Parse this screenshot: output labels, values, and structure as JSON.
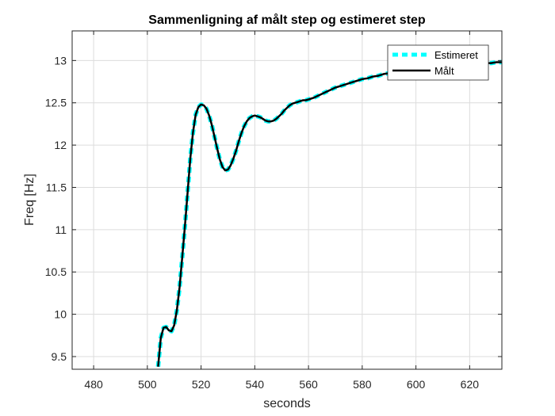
{
  "chart_data": {
    "type": "line",
    "title": "Sammenligning af målt step og estimeret step",
    "xlabel": "seconds",
    "ylabel": "Freq [Hz]",
    "xlim": [
      472,
      632
    ],
    "ylim": [
      9.35,
      13.35
    ],
    "xticks": [
      480,
      500,
      520,
      540,
      560,
      580,
      600,
      620
    ],
    "yticks": [
      9.5,
      10,
      10.5,
      11,
      11.5,
      12,
      12.5,
      13
    ],
    "ytick_labels": [
      "9.5",
      "10",
      "10.5",
      "11",
      "11.5",
      "12",
      "12.5",
      "13"
    ],
    "grid": true,
    "legend_position": "top-right",
    "series": [
      {
        "name": "Estimeret",
        "color": "#00FFFF",
        "style": "dashed",
        "x": [
          504,
          505,
          506,
          507,
          508,
          509,
          510,
          511,
          512,
          513,
          514,
          515,
          516,
          517,
          518,
          519,
          520,
          521,
          522,
          523,
          524,
          525,
          526,
          527,
          528,
          529,
          530,
          531,
          532,
          533,
          534,
          535,
          536,
          537,
          538,
          539,
          540,
          541,
          542,
          543,
          544,
          545,
          546,
          547,
          548,
          549,
          550,
          551,
          552,
          553,
          554,
          555,
          556,
          557,
          558,
          559,
          560,
          562,
          564,
          566,
          568,
          570,
          572,
          574,
          576,
          578,
          580,
          582,
          584,
          586,
          588,
          590,
          592,
          594,
          596,
          598,
          600,
          602,
          604,
          606,
          608,
          610,
          612,
          614,
          616,
          618,
          620,
          622,
          624,
          626,
          628,
          630,
          632
        ],
        "y": [
          9.38,
          9.72,
          9.84,
          9.85,
          9.81,
          9.8,
          9.87,
          10.05,
          10.32,
          10.68,
          11.05,
          11.45,
          11.85,
          12.15,
          12.36,
          12.45,
          12.48,
          12.47,
          12.43,
          12.35,
          12.24,
          12.1,
          11.96,
          11.83,
          11.74,
          11.7,
          11.71,
          11.76,
          11.84,
          11.93,
          12.04,
          12.14,
          12.22,
          12.28,
          12.32,
          12.34,
          12.35,
          12.34,
          12.33,
          12.31,
          12.29,
          12.28,
          12.28,
          12.29,
          12.31,
          12.34,
          12.37,
          12.41,
          12.44,
          12.47,
          12.49,
          12.5,
          12.51,
          12.52,
          12.53,
          12.53,
          12.54,
          12.56,
          12.59,
          12.62,
          12.65,
          12.68,
          12.7,
          12.72,
          12.74,
          12.76,
          12.78,
          12.79,
          12.81,
          12.82,
          12.84,
          12.85,
          12.86,
          12.87,
          12.87,
          12.88,
          12.89,
          12.9,
          12.91,
          12.92,
          12.93,
          12.93,
          12.94,
          12.94,
          12.95,
          12.95,
          12.96,
          12.96,
          12.97,
          12.97,
          12.97,
          12.98,
          12.98
        ]
      },
      {
        "name": "Målt",
        "color": "#000000",
        "style": "solid",
        "x": [
          504,
          505,
          506,
          507,
          508,
          509,
          510,
          511,
          512,
          513,
          514,
          515,
          516,
          517,
          518,
          519,
          520,
          521,
          522,
          523,
          524,
          525,
          526,
          527,
          528,
          529,
          530,
          531,
          532,
          533,
          534,
          535,
          536,
          537,
          538,
          539,
          540,
          541,
          542,
          543,
          544,
          545,
          546,
          547,
          548,
          549,
          550,
          551,
          552,
          553,
          554,
          555,
          556,
          557,
          558,
          559,
          560,
          562,
          564,
          566,
          568,
          570,
          572,
          574,
          576,
          578,
          580,
          582,
          584,
          586,
          588,
          590,
          592,
          594,
          596,
          598,
          600,
          602,
          604,
          606,
          608,
          610,
          612,
          614,
          616,
          618,
          620,
          622,
          624,
          626,
          628,
          630,
          632
        ],
        "y": [
          9.38,
          9.72,
          9.84,
          9.85,
          9.81,
          9.8,
          9.87,
          10.05,
          10.32,
          10.68,
          11.05,
          11.45,
          11.85,
          12.15,
          12.36,
          12.45,
          12.48,
          12.47,
          12.43,
          12.35,
          12.24,
          12.1,
          11.96,
          11.83,
          11.74,
          11.7,
          11.71,
          11.76,
          11.84,
          11.93,
          12.04,
          12.14,
          12.22,
          12.28,
          12.32,
          12.34,
          12.35,
          12.34,
          12.33,
          12.31,
          12.29,
          12.28,
          12.28,
          12.29,
          12.31,
          12.34,
          12.37,
          12.41,
          12.44,
          12.47,
          12.49,
          12.5,
          12.51,
          12.52,
          12.53,
          12.53,
          12.54,
          12.56,
          12.59,
          12.62,
          12.65,
          12.68,
          12.7,
          12.72,
          12.74,
          12.76,
          12.78,
          12.79,
          12.81,
          12.82,
          12.84,
          12.85,
          12.86,
          12.87,
          12.87,
          12.88,
          12.89,
          12.9,
          12.91,
          12.92,
          12.93,
          12.93,
          12.94,
          12.94,
          12.95,
          12.95,
          12.96,
          12.96,
          12.97,
          12.97,
          12.97,
          12.98,
          12.98
        ]
      }
    ]
  }
}
